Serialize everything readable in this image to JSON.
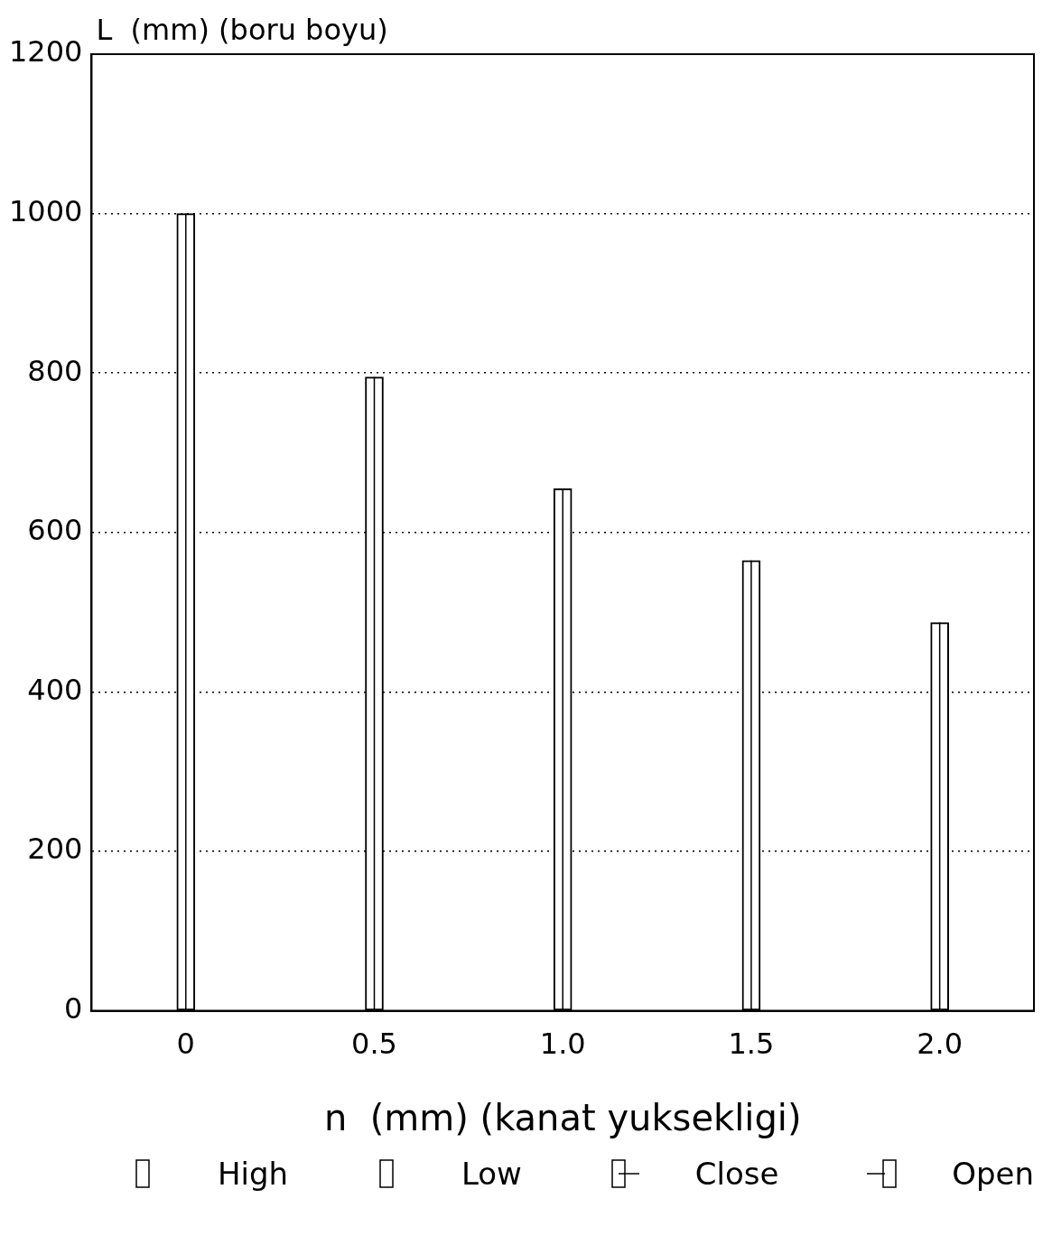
{
  "chart_data": {
    "type": "candlestick",
    "ylabel": "L  (mm) (boru boyu)",
    "xlabel": "n  (mm) (kanat yuksekligi)",
    "categories": [
      "0",
      "0.5",
      "1.0",
      "1.5",
      "2.0"
    ],
    "ohlc": [
      [
        0,
        1000,
        0,
        1000
      ],
      [
        0,
        795,
        0,
        795
      ],
      [
        0,
        655,
        0,
        655
      ],
      [
        0,
        565,
        0,
        565
      ],
      [
        0,
        487,
        0,
        487
      ]
    ],
    "color": "#000000",
    "ylim": [
      0,
      1200
    ],
    "yticks": [
      0,
      200,
      400,
      600,
      800,
      1000,
      1200
    ],
    "grid": "y",
    "annotations": [
      "High",
      "Low",
      "Close",
      "Open"
    ]
  }
}
